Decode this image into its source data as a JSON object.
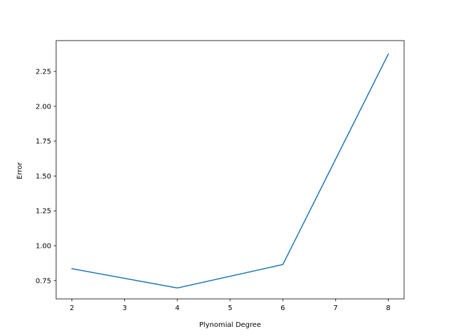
{
  "chart_data": {
    "type": "line",
    "xlabel": "Plynomial Degree",
    "ylabel": "Error",
    "xlim": [
      1.7,
      8.3
    ],
    "ylim": [
      0.6185,
      2.4715
    ],
    "x_ticks": [
      2,
      3,
      4,
      5,
      6,
      7,
      8
    ],
    "y_ticks": [
      0.75,
      1.0,
      1.25,
      1.5,
      1.75,
      2.0,
      2.25
    ],
    "x_tick_labels": [
      "2",
      "3",
      "4",
      "5",
      "6",
      "7",
      "8"
    ],
    "y_tick_labels": [
      "0.75",
      "1.00",
      "1.25",
      "1.50",
      "1.75",
      "2.00",
      "2.25"
    ],
    "grid": false,
    "series": [
      {
        "color": "#1f77b4",
        "x": [
          2,
          4,
          6,
          8
        ],
        "y": [
          0.835,
          0.697,
          0.865,
          2.375
        ]
      }
    ]
  }
}
